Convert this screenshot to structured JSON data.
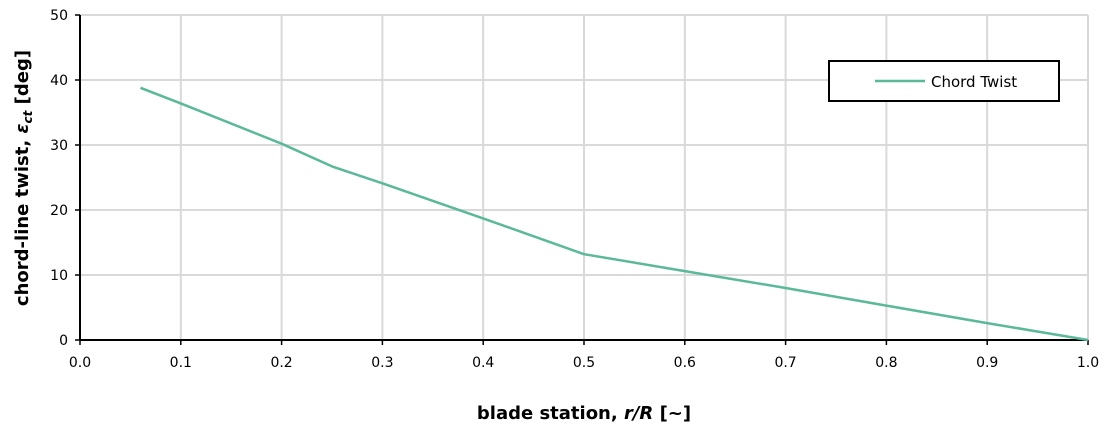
{
  "chart_data": {
    "type": "line",
    "title": "",
    "xlabel": "blade station, r/R [~]",
    "xlabel_parts": {
      "pre": "blade station, ",
      "italic": "r/R",
      "post": " [~]"
    },
    "ylabel": "chord-line twist, ε_ct [deg]",
    "ylabel_parts": {
      "pre": "chord-line  twist, ",
      "symbol": "ε",
      "sub": "ct",
      "post": " [deg]"
    },
    "xlim": [
      0.0,
      1.0
    ],
    "ylim": [
      0,
      50
    ],
    "xticks": [
      "0.0",
      "0.1",
      "0.2",
      "0.3",
      "0.4",
      "0.5",
      "0.6",
      "0.7",
      "0.8",
      "0.9",
      "1.0"
    ],
    "yticks": [
      "0",
      "10",
      "20",
      "30",
      "40",
      "50"
    ],
    "grid": true,
    "legend_position": "top-right",
    "series": [
      {
        "name": "Chord Twist",
        "color": "#5bb89a",
        "x": [
          0.06,
          0.1,
          0.2,
          0.25,
          0.3,
          0.4,
          0.5,
          0.6,
          0.7,
          0.8,
          0.9,
          1.0
        ],
        "y": [
          38.8,
          36.4,
          30.2,
          26.7,
          24.1,
          18.7,
          13.2,
          10.6,
          8.0,
          5.3,
          2.6,
          0.0
        ]
      }
    ]
  }
}
